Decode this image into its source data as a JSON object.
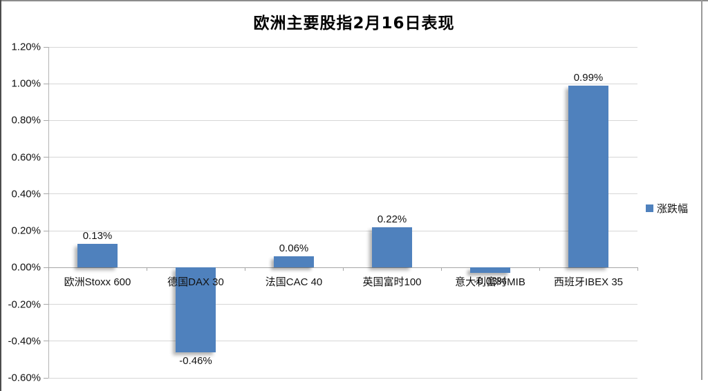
{
  "chart_data": {
    "type": "bar",
    "title": "欧洲主要股指2月16日表现",
    "categories": [
      "欧洲Stoxx 600",
      "德国DAX 30",
      "法国CAC 40",
      "英国富时100",
      "意大利富时MIB",
      "西班牙IBEX 35"
    ],
    "series": [
      {
        "name": "涨跌幅",
        "values": [
          0.13,
          -0.46,
          0.06,
          0.22,
          -0.03,
          0.99
        ]
      }
    ],
    "data_labels": [
      "0.13%",
      "-0.46%",
      "0.06%",
      "0.22%",
      "-0.03%",
      "0.99%"
    ],
    "legend_label": "涨跌幅",
    "legend_position": "right",
    "xlabel": "",
    "ylabel": "",
    "ylim": [
      -0.6,
      1.2
    ],
    "ytick_step": 0.2,
    "ytick_labels": [
      "1.20%",
      "1.00%",
      "0.80%",
      "0.60%",
      "0.40%",
      "0.20%",
      "0.00%",
      "-0.20%",
      "-0.40%",
      "-0.60%"
    ],
    "grid": "horizontal",
    "colors": {
      "bar": "#4f81bd",
      "gridline": "#d6d6d6",
      "axis_line": "#a6a6a6",
      "text": "#111111",
      "title": "#000000",
      "background": "#ffffff"
    }
  }
}
